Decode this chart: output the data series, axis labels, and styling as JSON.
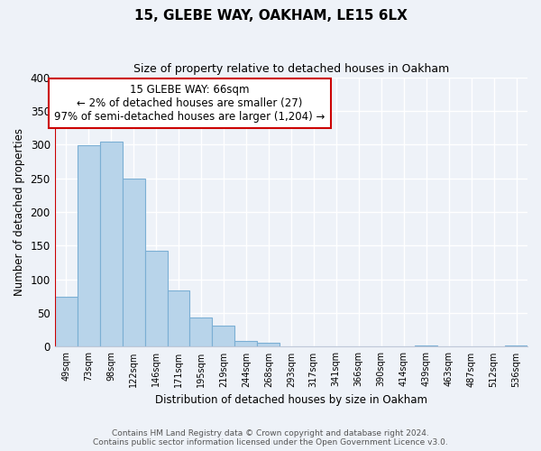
{
  "title": "15, GLEBE WAY, OAKHAM, LE15 6LX",
  "subtitle": "Size of property relative to detached houses in Oakham",
  "xlabel": "Distribution of detached houses by size in Oakham",
  "ylabel": "Number of detached properties",
  "bar_labels": [
    "49sqm",
    "73sqm",
    "98sqm",
    "122sqm",
    "146sqm",
    "171sqm",
    "195sqm",
    "219sqm",
    "244sqm",
    "268sqm",
    "293sqm",
    "317sqm",
    "341sqm",
    "366sqm",
    "390sqm",
    "414sqm",
    "439sqm",
    "463sqm",
    "487sqm",
    "512sqm",
    "536sqm"
  ],
  "bar_heights": [
    74,
    299,
    304,
    249,
    143,
    83,
    44,
    31,
    8,
    6,
    0,
    0,
    0,
    0,
    0,
    0,
    2,
    0,
    0,
    0,
    2
  ],
  "bar_color": "#b8d4ea",
  "bar_edge_color": "#7bafd4",
  "marker_line_color": "#cc0000",
  "annotation_title": "15 GLEBE WAY: 66sqm",
  "annotation_line1": "← 2% of detached houses are smaller (27)",
  "annotation_line2": "97% of semi-detached houses are larger (1,204) →",
  "annotation_box_facecolor": "#ffffff",
  "annotation_box_edgecolor": "#cc0000",
  "ylim": [
    0,
    400
  ],
  "yticks": [
    0,
    50,
    100,
    150,
    200,
    250,
    300,
    350,
    400
  ],
  "footer1": "Contains HM Land Registry data © Crown copyright and database right 2024.",
  "footer2": "Contains public sector information licensed under the Open Government Licence v3.0.",
  "bg_color": "#eef2f8",
  "grid_color": "#ffffff",
  "spine_color": "#c0c8d8"
}
